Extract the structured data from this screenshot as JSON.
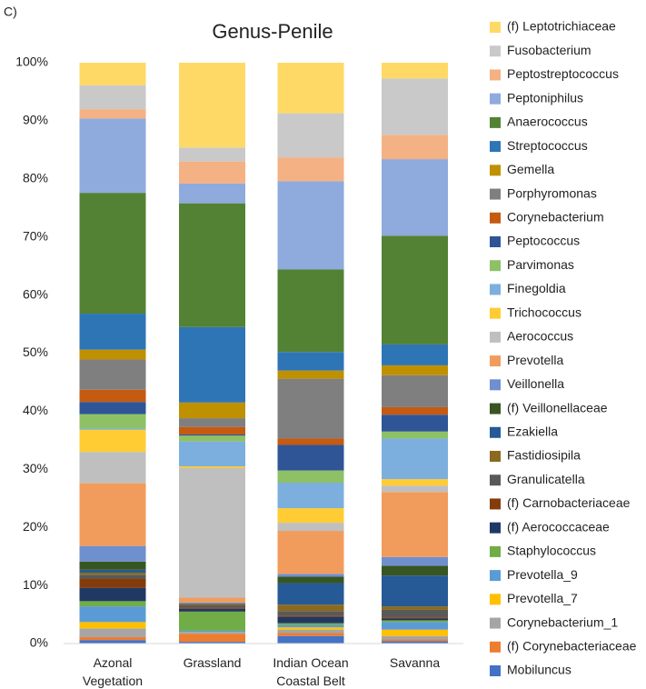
{
  "chart_data": {
    "type": "stacked_bar",
    "panel_label": "C)",
    "title": "Genus-Penile",
    "categories": [
      "Azonal Vegetation",
      "Grassland",
      "Indian Ocean Coastal Belt",
      "Savanna"
    ],
    "ylim": [
      0,
      100
    ],
    "yticks": [
      {
        "value": 0,
        "label": "0%"
      },
      {
        "value": 10,
        "label": "10%"
      },
      {
        "value": 20,
        "label": "20%"
      },
      {
        "value": 30,
        "label": "30%"
      },
      {
        "value": 40,
        "label": "40%"
      },
      {
        "value": 50,
        "label": "50%"
      },
      {
        "value": 60,
        "label": "60%"
      },
      {
        "value": 70,
        "label": "70%"
      },
      {
        "value": 80,
        "label": "80%"
      },
      {
        "value": 90,
        "label": "90%"
      },
      {
        "value": 100,
        "label": "100%"
      }
    ],
    "grid": false,
    "legend": "right",
    "series": [
      {
        "name": "(f) Leptotrichiaceae",
        "color": "#ffd966",
        "values": [
          3.9,
          14.6,
          8.7,
          2.7
        ]
      },
      {
        "name": "Fusobacterium",
        "color": "#c9c9c9",
        "values": [
          4.1,
          2.4,
          7.6,
          9.7
        ]
      },
      {
        "name": "Peptostreptococcus",
        "color": "#f4b183",
        "values": [
          1.6,
          3.8,
          4.1,
          4.2
        ]
      },
      {
        "name": "Peptoniphilus",
        "color": "#8faadc",
        "values": [
          12.8,
          3.4,
          15.2,
          13.2
        ]
      },
      {
        "name": "Anaerococcus",
        "color": "#548235",
        "values": [
          20.8,
          21.3,
          14.2,
          18.7
        ]
      },
      {
        "name": "Streptococcus",
        "color": "#2e75b6",
        "values": [
          6.2,
          13.0,
          3.2,
          3.6
        ]
      },
      {
        "name": "Gemella",
        "color": "#bf9000",
        "values": [
          1.7,
          2.7,
          1.4,
          1.7
        ]
      },
      {
        "name": "Porphyromonas",
        "color": "#7f7f7f",
        "values": [
          5.2,
          1.5,
          10.3,
          5.5
        ]
      },
      {
        "name": "Corynebacterium",
        "color": "#c55a11",
        "values": [
          2.1,
          1.3,
          1.1,
          1.3
        ]
      },
      {
        "name": "Peptococcus",
        "color": "#2f5597",
        "values": [
          2.1,
          0.2,
          4.4,
          2.9
        ]
      },
      {
        "name": "Parvimonas",
        "color": "#8ec165",
        "values": [
          2.5,
          1.0,
          2.1,
          1.2
        ]
      },
      {
        "name": "Finegoldia",
        "color": "#7cafde",
        "values": [
          0.2,
          4.3,
          4.4,
          7.0
        ]
      },
      {
        "name": "Trichococcus",
        "color": "#ffcc33",
        "values": [
          3.8,
          0.3,
          2.5,
          1.1
        ]
      },
      {
        "name": "Aerococcus",
        "color": "#bfbfbf",
        "values": [
          5.4,
          22.3,
          1.4,
          1.1
        ]
      },
      {
        "name": "Prevotella",
        "color": "#f19c5c",
        "values": [
          10.8,
          0.8,
          7.4,
          11.2
        ]
      },
      {
        "name": "Veillonella",
        "color": "#6f8fcf",
        "values": [
          2.7,
          0.2,
          0.5,
          1.5
        ]
      },
      {
        "name": "(f) Veillonellaceae",
        "color": "#375623",
        "values": [
          1.4,
          0,
          1.1,
          1.7
        ]
      },
      {
        "name": "Ezakiella",
        "color": "#255a96",
        "values": [
          0.5,
          0,
          3.7,
          5.3
        ]
      },
      {
        "name": "Fastidiosipila",
        "color": "#8b6a1f",
        "values": [
          0.4,
          0.2,
          1.1,
          0.6
        ]
      },
      {
        "name": "Granulicatella",
        "color": "#595959",
        "values": [
          0.6,
          0.5,
          0.8,
          1.3
        ]
      },
      {
        "name": "(f) Carnobacteriaceae",
        "color": "#843c0c",
        "values": [
          1.6,
          0.2,
          0.2,
          0.2
        ]
      },
      {
        "name": "(f) Aerococcaceae",
        "color": "#203864",
        "values": [
          2.3,
          0.5,
          1.1,
          0.3
        ]
      },
      {
        "name": "Staphylococcus",
        "color": "#70ad47",
        "values": [
          0.9,
          3.3,
          0.3,
          0.3
        ]
      },
      {
        "name": "Prevotella_9",
        "color": "#5b9bd5",
        "values": [
          2.7,
          0.2,
          0.4,
          1.3
        ]
      },
      {
        "name": "Prevotella_7",
        "color": "#ffc000",
        "values": [
          1.1,
          0,
          0.4,
          1.1
        ]
      },
      {
        "name": "Corynebacterium_1",
        "color": "#a5a5a5",
        "values": [
          1.5,
          0.3,
          0.6,
          0.6
        ]
      },
      {
        "name": "(f) Corynebacteriaceae",
        "color": "#ed7d31",
        "values": [
          0.5,
          1.4,
          0.5,
          0.3
        ]
      },
      {
        "name": "Mobiluncus",
        "color": "#4472c4",
        "values": [
          0.6,
          0.3,
          1.3,
          0.4
        ]
      }
    ]
  }
}
